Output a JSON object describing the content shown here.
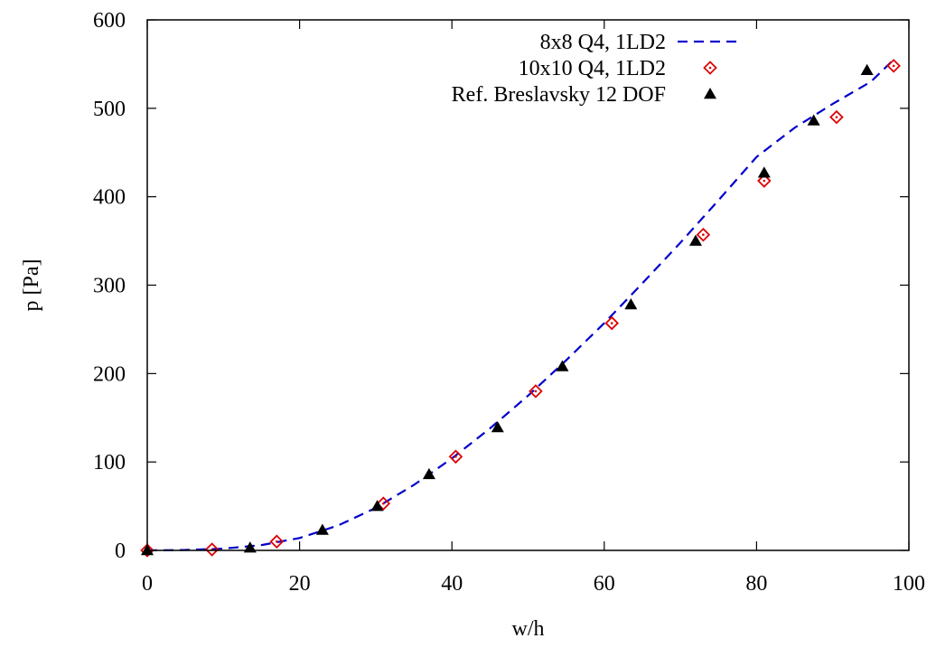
{
  "chart_data": {
    "type": "line",
    "xlabel": "w/h",
    "ylabel": "p [Pa]",
    "xlim": [
      0,
      100
    ],
    "ylim": [
      0,
      600
    ],
    "xticks": [
      0,
      20,
      40,
      60,
      80,
      100
    ],
    "yticks": [
      0,
      100,
      200,
      300,
      400,
      500,
      600
    ],
    "grid": false,
    "legend_position": "top-right",
    "series": [
      {
        "name": "8x8 Q4, 1LD2",
        "style": "dashed-line",
        "color": "#0000cc",
        "x": [
          0,
          5,
          10,
          15,
          20,
          25,
          30,
          35,
          40,
          45,
          50,
          55,
          60,
          65,
          70,
          75,
          80,
          85,
          90,
          95,
          98
        ],
        "y": [
          0,
          0.5,
          2,
          6,
          14,
          28,
          48,
          74,
          104,
          138,
          175,
          215,
          257,
          302,
          348,
          396,
          445,
          478,
          505,
          530,
          555
        ]
      },
      {
        "name": "10x10 Q4, 1LD2",
        "style": "open-diamond",
        "color": "#dd0000",
        "x": [
          0,
          8.5,
          17,
          31,
          40.5,
          51,
          61,
          73,
          81,
          90.5,
          98
        ],
        "y": [
          0,
          1,
          10,
          53,
          106,
          180,
          257,
          357,
          418,
          490,
          548
        ]
      },
      {
        "name": "Ref. Breslavsky 12 DOF",
        "style": "filled-triangle",
        "color": "#000000",
        "x": [
          0,
          13.5,
          23,
          30.2,
          37,
          46,
          54.5,
          63.5,
          72,
          81,
          87.5,
          94.5
        ],
        "y": [
          0,
          3,
          23,
          50,
          86,
          139,
          208,
          278,
          350,
          427,
          486,
          543
        ]
      }
    ]
  }
}
